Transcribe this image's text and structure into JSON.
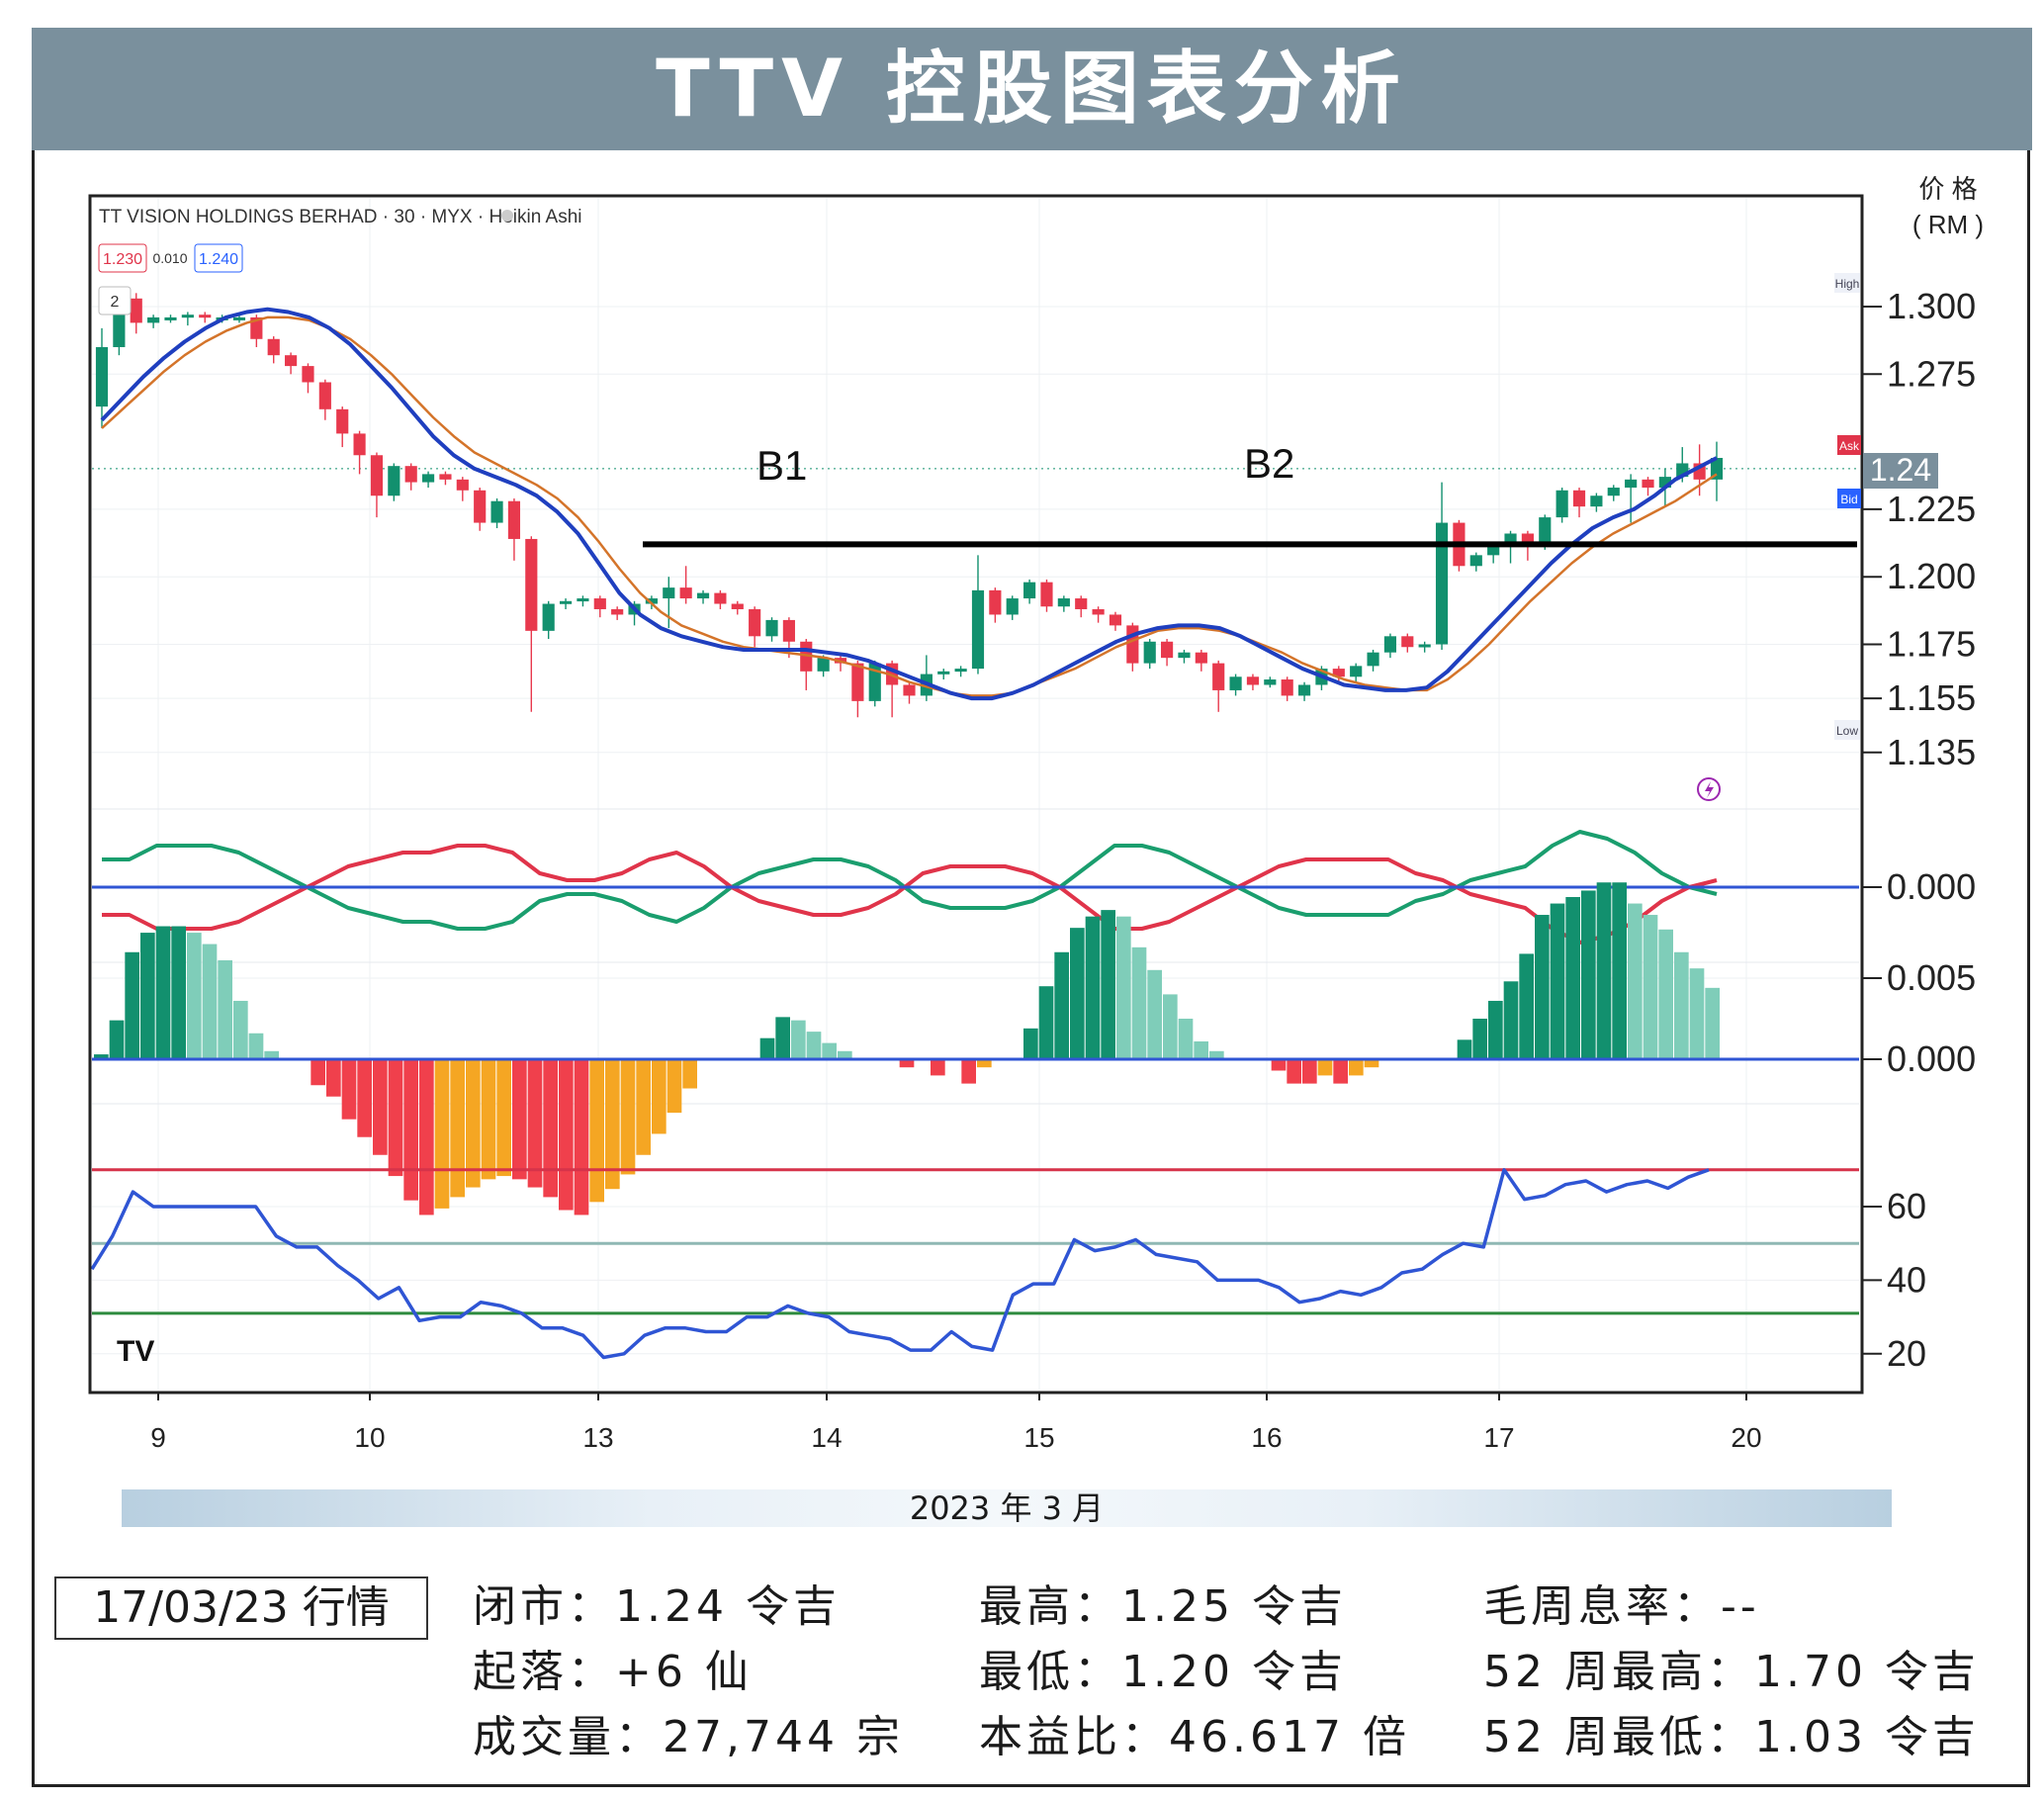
{
  "header": {
    "title": "TTV 控股图表分析"
  },
  "chart_meta": {
    "instrument": "TT VISION HOLDINGS BERHAD · 30 · MYX · Heikin Ashi",
    "sell_price": "1.230",
    "spread": "0.010",
    "buy_price": "1.240",
    "interval_select": "2",
    "price_axis_title_1": "价 格",
    "price_axis_title_2": "( RM )",
    "high_tag": "High",
    "low_tag": "Low",
    "ask_tag": "Ask",
    "bid_tag": "Bid",
    "current_price_label": "1.24",
    "logo_text": "TV"
  },
  "annotations": {
    "b1": "B1",
    "b2": "B2"
  },
  "x_axis": {
    "labels": [
      "9",
      "10",
      "13",
      "14",
      "15",
      "16",
      "17",
      "20"
    ],
    "date_caption": "2023 年 3 月"
  },
  "chart_data": [
    {
      "type": "candlestick",
      "candles": [
        [
          1.263,
          1.285,
          1.255,
          1.292
        ],
        [
          1.285,
          1.303,
          1.282,
          1.305
        ],
        [
          1.303,
          1.294,
          1.29,
          1.305
        ],
        [
          1.294,
          1.296,
          1.292,
          1.297
        ],
        [
          1.296,
          1.296,
          1.294,
          1.297
        ],
        [
          1.296,
          1.297,
          1.293,
          1.298
        ],
        [
          1.297,
          1.296,
          1.294,
          1.298
        ],
        [
          1.296,
          1.296,
          1.294,
          1.297
        ],
        [
          1.296,
          1.296,
          1.294,
          1.297
        ],
        [
          1.296,
          1.288,
          1.285,
          1.297
        ],
        [
          1.288,
          1.282,
          1.279,
          1.289
        ],
        [
          1.282,
          1.278,
          1.275,
          1.283
        ],
        [
          1.278,
          1.272,
          1.268,
          1.279
        ],
        [
          1.272,
          1.262,
          1.258,
          1.273
        ],
        [
          1.262,
          1.253,
          1.248,
          1.263
        ],
        [
          1.253,
          1.245,
          1.238,
          1.254
        ],
        [
          1.245,
          1.23,
          1.222,
          1.246
        ],
        [
          1.23,
          1.241,
          1.228,
          1.242
        ],
        [
          1.241,
          1.235,
          1.232,
          1.242
        ],
        [
          1.235,
          1.238,
          1.233,
          1.239
        ],
        [
          1.238,
          1.236,
          1.234,
          1.239
        ],
        [
          1.236,
          1.232,
          1.228,
          1.237
        ],
        [
          1.232,
          1.22,
          1.217,
          1.233
        ],
        [
          1.22,
          1.228,
          1.218,
          1.229
        ],
        [
          1.228,
          1.214,
          1.206,
          1.229
        ],
        [
          1.214,
          1.18,
          1.15,
          1.215
        ],
        [
          1.18,
          1.19,
          1.177,
          1.191
        ],
        [
          1.19,
          1.191,
          1.188,
          1.192
        ],
        [
          1.191,
          1.192,
          1.189,
          1.193
        ],
        [
          1.192,
          1.188,
          1.185,
          1.193
        ],
        [
          1.188,
          1.186,
          1.184,
          1.189
        ],
        [
          1.186,
          1.19,
          1.182,
          1.191
        ],
        [
          1.19,
          1.192,
          1.188,
          1.193
        ],
        [
          1.192,
          1.196,
          1.181,
          1.2
        ],
        [
          1.196,
          1.192,
          1.19,
          1.204
        ],
        [
          1.192,
          1.194,
          1.19,
          1.195
        ],
        [
          1.194,
          1.19,
          1.188,
          1.195
        ],
        [
          1.19,
          1.188,
          1.186,
          1.191
        ],
        [
          1.188,
          1.178,
          1.174,
          1.189
        ],
        [
          1.178,
          1.184,
          1.176,
          1.185
        ],
        [
          1.184,
          1.176,
          1.17,
          1.185
        ],
        [
          1.176,
          1.165,
          1.158,
          1.177
        ],
        [
          1.165,
          1.17,
          1.163,
          1.171
        ],
        [
          1.17,
          1.168,
          1.165,
          1.171
        ],
        [
          1.168,
          1.154,
          1.148,
          1.169
        ],
        [
          1.154,
          1.168,
          1.152,
          1.169
        ],
        [
          1.168,
          1.16,
          1.148,
          1.169
        ],
        [
          1.16,
          1.156,
          1.153,
          1.161
        ],
        [
          1.156,
          1.164,
          1.154,
          1.171
        ],
        [
          1.164,
          1.165,
          1.162,
          1.166
        ],
        [
          1.165,
          1.166,
          1.163,
          1.167
        ],
        [
          1.166,
          1.195,
          1.164,
          1.208
        ],
        [
          1.195,
          1.186,
          1.183,
          1.196
        ],
        [
          1.186,
          1.192,
          1.184,
          1.193
        ],
        [
          1.192,
          1.198,
          1.19,
          1.199
        ],
        [
          1.198,
          1.189,
          1.187,
          1.199
        ],
        [
          1.189,
          1.192,
          1.187,
          1.193
        ],
        [
          1.192,
          1.188,
          1.185,
          1.193
        ],
        [
          1.188,
          1.186,
          1.183,
          1.189
        ],
        [
          1.186,
          1.182,
          1.18,
          1.187
        ],
        [
          1.182,
          1.168,
          1.165,
          1.183
        ],
        [
          1.168,
          1.176,
          1.166,
          1.177
        ],
        [
          1.176,
          1.17,
          1.167,
          1.177
        ],
        [
          1.17,
          1.172,
          1.168,
          1.173
        ],
        [
          1.172,
          1.168,
          1.165,
          1.173
        ],
        [
          1.168,
          1.158,
          1.15,
          1.169
        ],
        [
          1.158,
          1.163,
          1.156,
          1.164
        ],
        [
          1.163,
          1.16,
          1.158,
          1.164
        ],
        [
          1.16,
          1.162,
          1.159,
          1.163
        ],
        [
          1.162,
          1.156,
          1.154,
          1.163
        ],
        [
          1.156,
          1.16,
          1.154,
          1.161
        ],
        [
          1.16,
          1.166,
          1.158,
          1.167
        ],
        [
          1.166,
          1.163,
          1.161,
          1.167
        ],
        [
          1.163,
          1.167,
          1.161,
          1.168
        ],
        [
          1.167,
          1.172,
          1.165,
          1.173
        ],
        [
          1.172,
          1.178,
          1.17,
          1.179
        ],
        [
          1.178,
          1.174,
          1.172,
          1.179
        ],
        [
          1.174,
          1.175,
          1.172,
          1.176
        ],
        [
          1.175,
          1.22,
          1.173,
          1.235
        ],
        [
          1.22,
          1.204,
          1.202,
          1.221
        ],
        [
          1.204,
          1.208,
          1.202,
          1.209
        ],
        [
          1.208,
          1.212,
          1.205,
          1.213
        ],
        [
          1.212,
          1.216,
          1.205,
          1.217
        ],
        [
          1.216,
          1.212,
          1.206,
          1.217
        ],
        [
          1.212,
          1.222,
          1.21,
          1.223
        ],
        [
          1.222,
          1.232,
          1.22,
          1.233
        ],
        [
          1.232,
          1.226,
          1.222,
          1.233
        ],
        [
          1.226,
          1.23,
          1.224,
          1.231
        ],
        [
          1.23,
          1.233,
          1.228,
          1.234
        ],
        [
          1.233,
          1.236,
          1.22,
          1.238
        ],
        [
          1.236,
          1.233,
          1.23,
          1.237
        ],
        [
          1.233,
          1.237,
          1.226,
          1.24
        ],
        [
          1.237,
          1.242,
          1.235,
          1.248
        ],
        [
          1.242,
          1.236,
          1.23,
          1.249
        ],
        [
          1.236,
          1.244,
          1.228,
          1.25
        ]
      ],
      "ma_blue": [
        1.258,
        1.266,
        1.274,
        1.281,
        1.287,
        1.292,
        1.296,
        1.298,
        1.299,
        1.298,
        1.296,
        1.292,
        1.286,
        1.278,
        1.27,
        1.261,
        1.252,
        1.245,
        1.24,
        1.237,
        1.234,
        1.23,
        1.224,
        1.216,
        1.205,
        1.194,
        1.186,
        1.181,
        1.178,
        1.176,
        1.174,
        1.173,
        1.173,
        1.173,
        1.173,
        1.172,
        1.171,
        1.169,
        1.166,
        1.163,
        1.16,
        1.157,
        1.155,
        1.155,
        1.157,
        1.16,
        1.164,
        1.168,
        1.172,
        1.176,
        1.179,
        1.181,
        1.182,
        1.182,
        1.181,
        1.178,
        1.174,
        1.17,
        1.166,
        1.163,
        1.16,
        1.159,
        1.158,
        1.158,
        1.159,
        1.165,
        1.173,
        1.181,
        1.189,
        1.197,
        1.205,
        1.212,
        1.218,
        1.222,
        1.225,
        1.23,
        1.236,
        1.24,
        1.244
      ],
      "ma_orange": [
        1.255,
        1.262,
        1.269,
        1.276,
        1.282,
        1.287,
        1.291,
        1.294,
        1.296,
        1.296,
        1.295,
        1.292,
        1.288,
        1.282,
        1.275,
        1.267,
        1.259,
        1.252,
        1.246,
        1.242,
        1.238,
        1.234,
        1.229,
        1.222,
        1.213,
        1.203,
        1.194,
        1.187,
        1.182,
        1.179,
        1.176,
        1.174,
        1.173,
        1.172,
        1.171,
        1.17,
        1.168,
        1.166,
        1.164,
        1.161,
        1.159,
        1.157,
        1.156,
        1.156,
        1.157,
        1.16,
        1.163,
        1.166,
        1.17,
        1.174,
        1.177,
        1.18,
        1.181,
        1.181,
        1.18,
        1.178,
        1.175,
        1.172,
        1.168,
        1.165,
        1.162,
        1.16,
        1.159,
        1.158,
        1.158,
        1.162,
        1.168,
        1.175,
        1.183,
        1.191,
        1.198,
        1.205,
        1.211,
        1.216,
        1.22,
        1.224,
        1.228,
        1.233,
        1.238
      ],
      "y_ticks": [
        "1.300",
        "1.275",
        "1.225",
        "1.200",
        "1.175",
        "1.155",
        "1.135"
      ],
      "resistance": 1.212
    },
    {
      "type": "line",
      "series": [
        {
          "values": [
            0.004,
            0.004,
            0.006,
            0.006,
            0.006,
            0.005,
            0.003,
            0.001,
            -0.001,
            -0.003,
            -0.004,
            -0.005,
            -0.005,
            -0.006,
            -0.006,
            -0.005,
            -0.002,
            -0.001,
            -0.001,
            -0.002,
            -0.004,
            -0.005,
            -0.003,
            0.0,
            0.002,
            0.003,
            0.004,
            0.004,
            0.003,
            0.001,
            -0.002,
            -0.003,
            -0.003,
            -0.003,
            -0.002,
            0.0,
            0.003,
            0.006,
            0.006,
            0.005,
            0.003,
            0.001,
            -0.001,
            -0.003,
            -0.004,
            -0.004,
            -0.004,
            -0.004,
            -0.002,
            -0.001,
            0.001,
            0.002,
            0.003,
            0.006,
            0.008,
            0.007,
            0.005,
            0.002,
            0.0,
            -0.001
          ],
          "color": "#1a9e6e"
        },
        {
          "values": [
            -0.004,
            -0.004,
            -0.006,
            -0.006,
            -0.006,
            -0.005,
            -0.003,
            -0.001,
            0.001,
            0.003,
            0.004,
            0.005,
            0.005,
            0.006,
            0.006,
            0.005,
            0.002,
            0.001,
            0.001,
            0.002,
            0.004,
            0.005,
            0.003,
            0.0,
            -0.002,
            -0.003,
            -0.004,
            -0.004,
            -0.003,
            -0.001,
            0.002,
            0.003,
            0.003,
            0.003,
            0.002,
            0.0,
            -0.003,
            -0.006,
            -0.006,
            -0.005,
            -0.003,
            -0.001,
            0.001,
            0.003,
            0.004,
            0.004,
            0.004,
            0.004,
            0.002,
            0.001,
            -0.001,
            -0.002,
            -0.003,
            -0.006,
            -0.008,
            -0.007,
            -0.005,
            -0.002,
            0.0,
            0.001
          ],
          "color": "#e0344a"
        }
      ],
      "y_ticks": [
        "0.000"
      ]
    },
    {
      "type": "bar",
      "values": [
        0.0003,
        0.0024,
        0.0066,
        0.0078,
        0.0082,
        0.0082,
        0.0078,
        0.0071,
        0.0061,
        0.0036,
        0.0016,
        0.0005,
        0,
        0,
        -0.0016,
        -0.0023,
        -0.0037,
        -0.0048,
        -0.0059,
        -0.0072,
        -0.0087,
        -0.0096,
        -0.0092,
        -0.0085,
        -0.0079,
        -0.0074,
        -0.0072,
        -0.0074,
        -0.0079,
        -0.0085,
        -0.0093,
        -0.0096,
        -0.0088,
        -0.008,
        -0.0071,
        -0.0059,
        -0.0046,
        -0.0033,
        -0.0018,
        0,
        0,
        0,
        0,
        0.0013,
        0.0026,
        0.0024,
        0.0017,
        0.001,
        0.0005,
        0,
        0,
        0,
        -0.0005,
        0,
        -0.001,
        0,
        -0.0015,
        -0.0005,
        0,
        0,
        0.0019,
        0.0045,
        0.0066,
        0.0081,
        0.0088,
        0.0092,
        0.0088,
        0.0069,
        0.0055,
        0.004,
        0.0025,
        0.0011,
        0.0005,
        0,
        0,
        0,
        -0.0007,
        -0.0015,
        -0.0015,
        -0.001,
        -0.0015,
        -0.001,
        -0.0005,
        0,
        0,
        0,
        0,
        0,
        0.0012,
        0.0025,
        0.0036,
        0.0048,
        0.0065,
        0.0089,
        0.0096,
        0.01,
        0.0104,
        0.0109,
        0.0109,
        0.0096,
        0.0089,
        0.008,
        0.0066,
        0.0056,
        0.0044
      ],
      "y_ticks": [
        "0.005",
        "0.000"
      ]
    },
    {
      "type": "line",
      "values": [
        43,
        52,
        64,
        60,
        60,
        60,
        60,
        60,
        60,
        52,
        49,
        49,
        44,
        40,
        35,
        38,
        29,
        30,
        30,
        34,
        33,
        31,
        27,
        27,
        25,
        19,
        20,
        25,
        27,
        27,
        26,
        26,
        30,
        30,
        33,
        31,
        30,
        26,
        25,
        24,
        21,
        21,
        26,
        22,
        21,
        36,
        39,
        39,
        51,
        48,
        49,
        51,
        47,
        46,
        45,
        40,
        40,
        40,
        38,
        34,
        35,
        37,
        36,
        38,
        42,
        43,
        47,
        50,
        49,
        70,
        62,
        63,
        66,
        67,
        64,
        66,
        67,
        65,
        68,
        70
      ],
      "ylim": [
        14,
        76
      ],
      "y_ticks": [
        "60",
        "40",
        "20"
      ],
      "levels": [
        {
          "value": 70,
          "color": "#d6334a"
        },
        {
          "value": 50,
          "color": "#8fb8b4"
        },
        {
          "value": 31,
          "color": "#2e8b3e"
        }
      ]
    }
  ],
  "stats": {
    "date_label": "17/03/23 行情",
    "close": "闭市：1.24 令吉",
    "change": "起落：+6 仙",
    "volume": "成交量：27,744 宗",
    "high": "最高：1.25 令吉",
    "low": "最低：1.20 令吉",
    "pe": "本益比：46.617 倍",
    "dividend": "毛周息率：--",
    "week52_high": "52 周最高：1.70 令吉",
    "week52_low": "52 周最低：1.03 令吉"
  },
  "colors": {
    "up": "#12906e",
    "down": "#e8394d",
    "blue": "#1f3fbf",
    "orange": "#d4742a",
    "hist_up_dark": "#12906e",
    "hist_up_light": "#7fcdb9",
    "hist_down_dark": "#f0404c",
    "hist_down_light": "#f5a623"
  }
}
